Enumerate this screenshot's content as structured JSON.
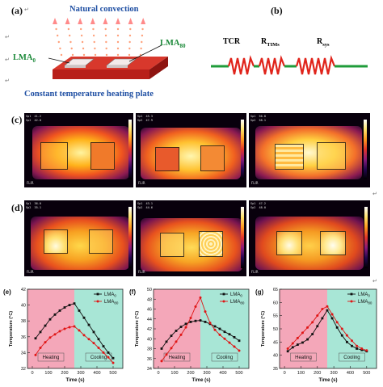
{
  "panel_a": {
    "label": "(a)",
    "natural_convection": "Natural convection",
    "lma_0": "LMA",
    "lma_0_sub": "0",
    "lma_80": "LMA",
    "lma_80_sub": "80",
    "plate_caption": "Constant temperature heating plate",
    "colors": {
      "plate": "#c8281f",
      "plate_edge": "#8e1410",
      "arrow": "#ff8a6b",
      "pad": "#f1e6e6"
    }
  },
  "panel_b": {
    "label": "(b)",
    "tcr": "TCR",
    "r_tims": "R",
    "r_tims_sub": "TIMs",
    "r_sys": "R",
    "r_sys_sub": "sys",
    "colors": {
      "wire": "#1f9c3a",
      "resistor": "#e0241b"
    }
  },
  "panel_c": {
    "label": "(c)"
  },
  "panel_d": {
    "label": "(d)"
  },
  "ir_camera": {
    "brand": "FLIR"
  },
  "return_mark": "↵",
  "charts": {
    "legend_lma0": "LMA",
    "legend_lma0_sub": "0",
    "legend_lma80": "LMA",
    "legend_lma80_sub": "80",
    "ylabel": "Temperature (°C)",
    "xlabel": "Time (s)",
    "heating_label": "Heating",
    "cooling_label": "Cooling",
    "colors": {
      "heating": "#f4a7b9",
      "cooling": "#a8e6d6",
      "lma0": "#111111",
      "lma80": "#e01515"
    }
  },
  "chart_data": [
    {
      "type": "line",
      "label": "(e)",
      "xlabel": "Time (s)",
      "ylabel": "Temperature (°C)",
      "xlim": [
        -30,
        560
      ],
      "ylim": [
        32,
        42
      ],
      "x_ticks": [
        0,
        100,
        200,
        300,
        400,
        500
      ],
      "y_ticks": [
        32,
        34,
        36,
        38,
        40,
        42
      ],
      "heating_range": [
        -30,
        260
      ],
      "cooling_range": [
        260,
        560
      ],
      "legend_position": "top-right",
      "series": [
        {
          "name": "LMA0",
          "x": [
            20,
            50,
            80,
            110,
            140,
            170,
            200,
            230,
            260,
            290,
            320,
            350,
            380,
            410,
            440,
            470,
            500
          ],
          "y": [
            35.8,
            36.6,
            37.4,
            38.2,
            38.8,
            39.3,
            39.7,
            40.0,
            40.2,
            39.3,
            38.4,
            37.5,
            36.6,
            35.7,
            34.8,
            34.0,
            33.3
          ]
        },
        {
          "name": "LMA80",
          "x": [
            20,
            50,
            80,
            110,
            140,
            170,
            200,
            230,
            260,
            290,
            320,
            350,
            380,
            410,
            440,
            470,
            500
          ],
          "y": [
            33.7,
            34.6,
            35.3,
            35.9,
            36.3,
            36.7,
            37.0,
            37.2,
            37.3,
            36.8,
            36.2,
            35.7,
            35.2,
            34.6,
            34.0,
            33.4,
            32.7
          ]
        }
      ]
    },
    {
      "type": "line",
      "label": "(f)",
      "xlabel": "Time (s)",
      "ylabel": "Temperature (°C)",
      "xlim": [
        -30,
        560
      ],
      "ylim": [
        34,
        50
      ],
      "x_ticks": [
        0,
        100,
        200,
        300,
        400,
        500
      ],
      "y_ticks": [
        34,
        36,
        38,
        40,
        42,
        44,
        46,
        48,
        50
      ],
      "heating_range": [
        -30,
        260
      ],
      "cooling_range": [
        260,
        560
      ],
      "legend_position": "top-right",
      "series": [
        {
          "name": "LMA0",
          "x": [
            20,
            50,
            80,
            110,
            140,
            170,
            200,
            230,
            260,
            290,
            320,
            350,
            380,
            410,
            440,
            470,
            500
          ],
          "y": [
            38.0,
            39.4,
            40.6,
            41.6,
            42.4,
            43.0,
            43.4,
            43.6,
            43.7,
            43.4,
            43.0,
            42.5,
            42.0,
            41.4,
            40.9,
            40.3,
            39.6
          ]
        },
        {
          "name": "LMA80",
          "x": [
            20,
            50,
            80,
            110,
            140,
            170,
            200,
            230,
            260,
            290,
            320,
            350,
            380,
            410,
            440,
            470,
            500
          ],
          "y": [
            35.5,
            36.8,
            38.1,
            39.4,
            40.8,
            42.3,
            44.2,
            46.5,
            48.3,
            45.5,
            43.2,
            41.8,
            40.8,
            40.0,
            39.2,
            38.4,
            37.6
          ]
        }
      ]
    },
    {
      "type": "line",
      "label": "(g)",
      "xlabel": "Time (s)",
      "ylabel": "Temperature (°C)",
      "xlim": [
        -30,
        560
      ],
      "ylim": [
        35,
        65
      ],
      "x_ticks": [
        0,
        100,
        200,
        300,
        400,
        500
      ],
      "y_ticks": [
        35,
        40,
        45,
        50,
        55,
        60,
        65
      ],
      "heating_range": [
        -30,
        260
      ],
      "cooling_range": [
        260,
        560
      ],
      "legend_position": "top-right",
      "series": [
        {
          "name": "LMA0",
          "x": [
            20,
            50,
            80,
            110,
            140,
            170,
            200,
            230,
            260,
            290,
            320,
            350,
            380,
            410,
            440,
            470,
            500
          ],
          "y": [
            41.5,
            43.0,
            44.0,
            44.8,
            46.0,
            48.0,
            51.0,
            54.0,
            57.0,
            54.0,
            50.5,
            47.5,
            45.0,
            43.5,
            42.5,
            42.0,
            41.5
          ]
        },
        {
          "name": "LMA80",
          "x": [
            20,
            50,
            80,
            110,
            140,
            170,
            200,
            230,
            260,
            290,
            320,
            350,
            380,
            410,
            440,
            470,
            500
          ],
          "y": [
            42.5,
            44.5,
            46.5,
            48.5,
            50.5,
            52.5,
            55.0,
            57.5,
            58.5,
            55.5,
            52.5,
            50.0,
            47.5,
            45.5,
            43.5,
            42.5,
            41.8
          ]
        }
      ]
    }
  ]
}
